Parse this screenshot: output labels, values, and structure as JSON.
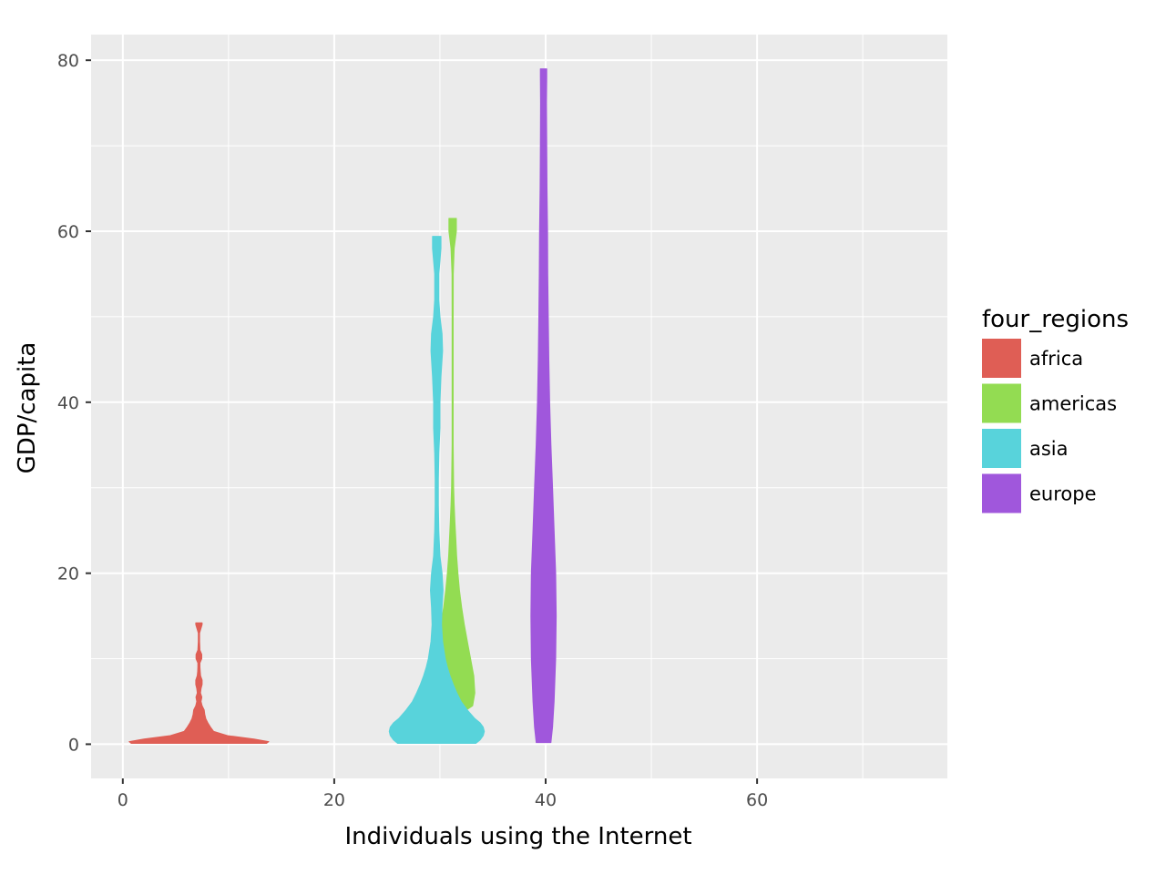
{
  "chart_data": {
    "type": "violin",
    "xlabel": "Individuals using the Internet",
    "ylabel": "GDP/capita",
    "xlim": [
      -3,
      78
    ],
    "ylim": [
      -4,
      83
    ],
    "x_ticks": [
      0,
      20,
      40,
      60
    ],
    "y_ticks": [
      0,
      20,
      40,
      60,
      80
    ],
    "grid": true,
    "legend": {
      "title": "four_regions",
      "position": "right",
      "entries": [
        "africa",
        "americas",
        "asia",
        "europe"
      ]
    },
    "series": [
      {
        "name": "africa",
        "color": "#df5e55",
        "center_x": 7.2,
        "profile": [
          [
            0.1,
            6.4
          ],
          [
            0.3,
            6.6
          ],
          [
            0.6,
            5.2
          ],
          [
            1.0,
            2.7
          ],
          [
            1.5,
            1.4
          ],
          [
            2.0,
            1.1
          ],
          [
            2.5,
            0.85
          ],
          [
            3.0,
            0.65
          ],
          [
            3.5,
            0.55
          ],
          [
            4.0,
            0.5
          ],
          [
            4.5,
            0.3
          ],
          [
            5.0,
            0.2
          ],
          [
            5.5,
            0.28
          ],
          [
            6.0,
            0.15
          ],
          [
            6.5,
            0.2
          ],
          [
            7.0,
            0.3
          ],
          [
            7.5,
            0.3
          ],
          [
            8.0,
            0.16
          ],
          [
            8.5,
            0.12
          ],
          [
            9.0,
            0.1
          ],
          [
            9.5,
            0.1
          ],
          [
            10.0,
            0.27
          ],
          [
            10.5,
            0.27
          ],
          [
            11.0,
            0.1
          ],
          [
            12.0,
            0.06
          ],
          [
            13.0,
            0.06
          ],
          [
            14.0,
            0.3
          ],
          [
            14.2,
            0.3
          ]
        ]
      },
      {
        "name": "americas",
        "color": "#93dc52",
        "center_x": 31.2,
        "profile": [
          [
            3.5,
            0.7
          ],
          [
            4.5,
            1.9
          ],
          [
            6.0,
            2.1
          ],
          [
            8.0,
            2.0
          ],
          [
            10.0,
            1.7
          ],
          [
            12.0,
            1.4
          ],
          [
            14.0,
            1.1
          ],
          [
            16.0,
            0.85
          ],
          [
            18.0,
            0.65
          ],
          [
            20.0,
            0.5
          ],
          [
            22.0,
            0.38
          ],
          [
            24.0,
            0.3
          ],
          [
            26.0,
            0.22
          ],
          [
            28.0,
            0.15
          ],
          [
            30.0,
            0.1
          ],
          [
            35.0,
            0.05
          ],
          [
            40.0,
            0.05
          ],
          [
            45.0,
            0.05
          ],
          [
            50.0,
            0.05
          ],
          [
            55.0,
            0.06
          ],
          [
            58.0,
            0.15
          ],
          [
            60.0,
            0.35
          ],
          [
            61.5,
            0.35
          ]
        ]
      },
      {
        "name": "asia",
        "color": "#58d3db",
        "center_x": 29.7,
        "profile": [
          [
            0.1,
            3.7
          ],
          [
            0.5,
            4.1
          ],
          [
            1.0,
            4.4
          ],
          [
            1.5,
            4.5
          ],
          [
            2.0,
            4.4
          ],
          [
            2.5,
            4.1
          ],
          [
            3.0,
            3.6
          ],
          [
            4.0,
            2.9
          ],
          [
            5.0,
            2.3
          ],
          [
            6.0,
            1.9
          ],
          [
            7.0,
            1.55
          ],
          [
            8.0,
            1.25
          ],
          [
            9.0,
            1.0
          ],
          [
            10.0,
            0.8
          ],
          [
            12.0,
            0.55
          ],
          [
            14.0,
            0.45
          ],
          [
            16.0,
            0.5
          ],
          [
            18.0,
            0.6
          ],
          [
            20.0,
            0.5
          ],
          [
            22.0,
            0.3
          ],
          [
            25.0,
            0.2
          ],
          [
            28.0,
            0.15
          ],
          [
            31.0,
            0.15
          ],
          [
            34.0,
            0.2
          ],
          [
            37.0,
            0.3
          ],
          [
            40.0,
            0.3
          ],
          [
            43.0,
            0.4
          ],
          [
            46.0,
            0.55
          ],
          [
            48.0,
            0.5
          ],
          [
            50.0,
            0.3
          ],
          [
            52.0,
            0.2
          ],
          [
            55.0,
            0.2
          ],
          [
            58.0,
            0.4
          ],
          [
            59.4,
            0.4
          ]
        ]
      },
      {
        "name": "europe",
        "color": "#a057dc",
        "center_x": 39.8,
        "profile": [
          [
            0.2,
            0.7
          ],
          [
            2.0,
            0.85
          ],
          [
            5.0,
            1.0
          ],
          [
            10.0,
            1.15
          ],
          [
            15.0,
            1.2
          ],
          [
            20.0,
            1.15
          ],
          [
            25.0,
            1.0
          ],
          [
            30.0,
            0.85
          ],
          [
            35.0,
            0.7
          ],
          [
            40.0,
            0.58
          ],
          [
            45.0,
            0.5
          ],
          [
            50.0,
            0.45
          ],
          [
            55.0,
            0.4
          ],
          [
            60.0,
            0.38
          ],
          [
            65.0,
            0.33
          ],
          [
            70.0,
            0.3
          ],
          [
            75.0,
            0.28
          ],
          [
            78.0,
            0.3
          ],
          [
            79.0,
            0.3
          ]
        ]
      }
    ]
  }
}
